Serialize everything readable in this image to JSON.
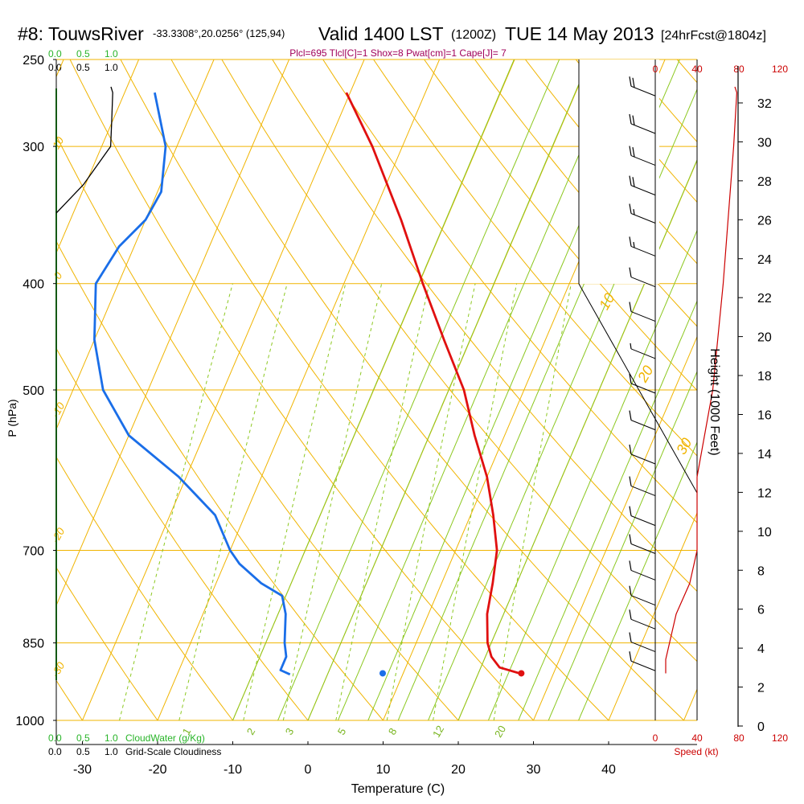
{
  "header": {
    "site": "#8: TouwsRiver",
    "coords": "-33.3308°,20.0256° (125,94)",
    "valid": "Valid 1400 LST",
    "utc": "(1200Z)",
    "date": "TUE 14 May 2013",
    "forecast": "[24hrFcst@1804z]",
    "indices": "Plcl=695 Tlcl[C]=1 Shox=8 Pwat[cm]=1 Cape[J]= 7"
  },
  "axes": {
    "ylabel": "P (hPa)",
    "xlabel": "Temperature (C)",
    "height_label": "Height (1000 Feet)",
    "speed_label": "Speed (kt)",
    "cloudwater_label": "CloudWater (g/Kg)",
    "cloudiness_label": "Grid-Scale Cloudiness",
    "cloud_ticks_green": [
      "0.0",
      "0.5",
      "1.0"
    ],
    "cloud_ticks_black": [
      "0.0",
      "0.5",
      "1.0"
    ],
    "speed_ticks": [
      "0",
      "40",
      "80",
      "120"
    ]
  },
  "colors": {
    "isotherm": "#f0b400",
    "dry_adiabat": "#f0b400",
    "moist_adiabat": "#8cc820",
    "mixing_ratio": "#8cc820",
    "temperature": "#e01010",
    "dewpoint": "#1a6ee8",
    "cloudwater": "#28b428",
    "cloudiness": "#000000",
    "speed": "#cc0000",
    "indices": "#a0005a"
  },
  "chart_data": {
    "type": "line",
    "title": "#8: TouwsRiver  Valid 1400 LST (1200Z) TUE 14 May 2013 [24hrFcst@1804z]",
    "xlabel": "Temperature (C)",
    "ylabel": "P (hPa)",
    "xlim": [
      -30,
      40
    ],
    "xticks": [
      -30,
      -20,
      -10,
      0,
      10,
      20,
      30,
      40
    ],
    "pressure_ticks": [
      250,
      300,
      400,
      500,
      700,
      850,
      1000
    ],
    "height_ticks_kft": [
      0,
      2,
      4,
      6,
      8,
      10,
      12,
      14,
      16,
      18,
      20,
      22,
      24,
      26,
      28,
      30,
      32
    ],
    "isotherm_labels": [
      -30,
      -20,
      -10,
      0,
      10,
      20,
      30
    ],
    "mixing_ratio_labels": [
      1,
      2,
      3,
      5,
      8,
      12,
      20
    ],
    "series": [
      {
        "name": "temperature",
        "points": [
          [
            906,
            25.5
          ],
          [
            895,
            22.5
          ],
          [
            875,
            20.8
          ],
          [
            850,
            19.5
          ],
          [
            800,
            17.8
          ],
          [
            750,
            16.8
          ],
          [
            700,
            15.5
          ],
          [
            650,
            13.0
          ],
          [
            600,
            10.0
          ],
          [
            550,
            6.0
          ],
          [
            500,
            2.0
          ],
          [
            450,
            -3.5
          ],
          [
            400,
            -9.5
          ],
          [
            350,
            -16.0
          ],
          [
            300,
            -24.0
          ],
          [
            268,
            -30.5
          ]
        ]
      },
      {
        "name": "dewpoint",
        "points": [
          [
            908,
            -5.0
          ],
          [
            900,
            -6.5
          ],
          [
            875,
            -6.5
          ],
          [
            850,
            -7.5
          ],
          [
            800,
            -9.0
          ],
          [
            770,
            -10.5
          ],
          [
            750,
            -14.0
          ],
          [
            720,
            -18.0
          ],
          [
            700,
            -20.0
          ],
          [
            650,
            -24.0
          ],
          [
            600,
            -31.0
          ],
          [
            550,
            -40.0
          ],
          [
            500,
            -46.0
          ],
          [
            450,
            -50.0
          ],
          [
            400,
            -53.0
          ],
          [
            370,
            -52.0
          ],
          [
            350,
            -50.0
          ],
          [
            330,
            -49.5
          ],
          [
            300,
            -51.5
          ],
          [
            268,
            -56.0
          ]
        ]
      },
      {
        "name": "cloudwater",
        "points": [
          [
            1000,
            0
          ],
          [
            250,
            0
          ]
        ]
      },
      {
        "name": "cloudiness",
        "points": [
          [
            345,
            0.0
          ],
          [
            325,
            0.26
          ],
          [
            300,
            0.52
          ],
          [
            285,
            0.53
          ],
          [
            268,
            0.54
          ]
        ]
      },
      {
        "name": "wind_speed",
        "points": [
          [
            906,
            10
          ],
          [
            880,
            10
          ],
          [
            800,
            20
          ],
          [
            750,
            33
          ],
          [
            700,
            40
          ],
          [
            650,
            40
          ],
          [
            600,
            40
          ],
          [
            500,
            55
          ],
          [
            400,
            65
          ],
          [
            300,
            75
          ],
          [
            268,
            78
          ]
        ]
      }
    ],
    "surface_dewpoint_marker": {
      "pressure": 906,
      "temperature": 10
    },
    "surface_temperature_marker": {
      "pressure": 906,
      "temperature": 25.5
    },
    "wind_barbs": [
      {
        "pressure": 268,
        "speed": 20
      },
      {
        "pressure": 290,
        "speed": 20
      },
      {
        "pressure": 310,
        "speed": 20
      },
      {
        "pressure": 330,
        "speed": 20
      },
      {
        "pressure": 350,
        "speed": 15
      },
      {
        "pressure": 375,
        "speed": 15
      },
      {
        "pressure": 400,
        "speed": 10
      },
      {
        "pressure": 430,
        "speed": 10
      },
      {
        "pressure": 465,
        "speed": 5
      },
      {
        "pressure": 500,
        "speed": 10
      },
      {
        "pressure": 540,
        "speed": 10
      },
      {
        "pressure": 580,
        "speed": 10
      },
      {
        "pressure": 620,
        "speed": 10
      },
      {
        "pressure": 660,
        "speed": 10
      },
      {
        "pressure": 700,
        "speed": 10
      },
      {
        "pressure": 740,
        "speed": 10
      },
      {
        "pressure": 780,
        "speed": 10
      },
      {
        "pressure": 820,
        "speed": 10
      },
      {
        "pressure": 860,
        "speed": 10
      },
      {
        "pressure": 895,
        "speed": 10
      }
    ]
  }
}
